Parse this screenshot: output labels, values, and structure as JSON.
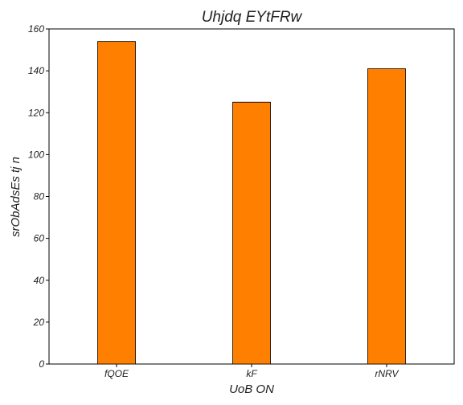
{
  "chart_data": {
    "type": "bar",
    "title": "Uhjdq EYtFRw",
    "xlabel": "UoB  ON",
    "ylabel": "srObAdsEs tj n",
    "categories": [
      "fQOE",
      "kF",
      "rNRV"
    ],
    "series": [
      {
        "values": [
          154,
          125,
          141
        ]
      }
    ],
    "ylim": [
      0,
      160
    ],
    "yticks": [
      0,
      20,
      40,
      60,
      80,
      100,
      120,
      140,
      160
    ],
    "grid": false,
    "legend": "none",
    "colors": {
      "bar": "#ff7f00",
      "edge": "#000000",
      "axis": "#000000"
    }
  }
}
